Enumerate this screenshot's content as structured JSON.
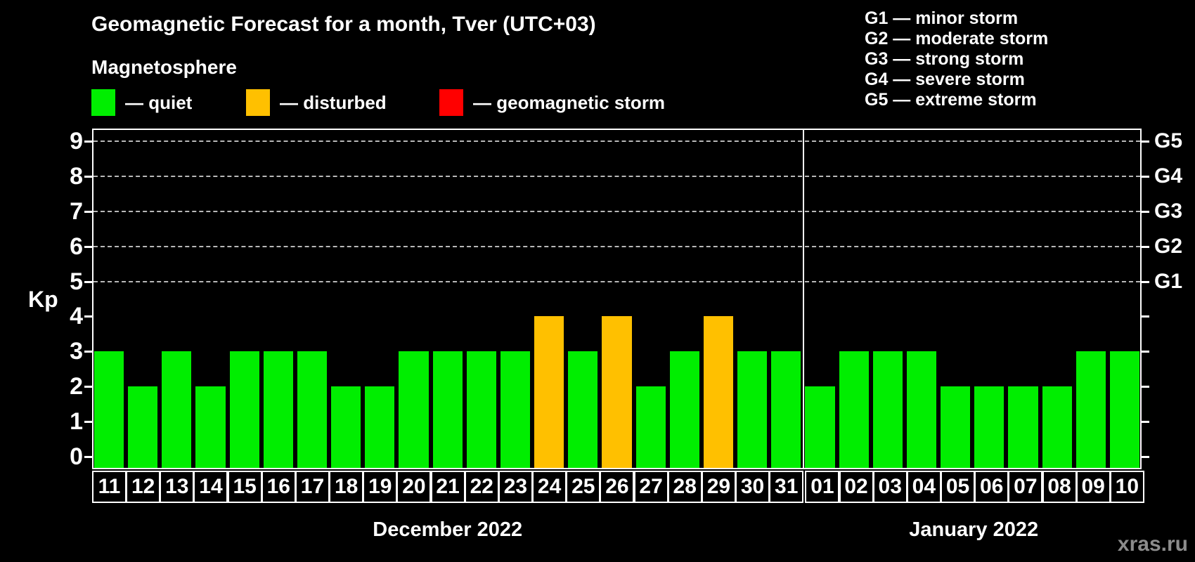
{
  "title": "Geomagnetic Forecast for a month, Tver (UTC+03)",
  "subtitle": "Magnetosphere",
  "legend": {
    "items": [
      {
        "status": "quiet",
        "label": "— quiet",
        "color": "#00ee00"
      },
      {
        "status": "disturbed",
        "label": "— disturbed",
        "color": "#ffc000"
      },
      {
        "status": "storm",
        "label": "— geomagnetic storm",
        "color": "#ff0000"
      }
    ]
  },
  "g_legend": [
    "G1 — minor storm",
    "G2 — moderate storm",
    "G3 — strong storm",
    "G4 — severe storm",
    "G5 — extreme storm"
  ],
  "watermark": "xras.ru",
  "chart_data": {
    "type": "bar",
    "title": "Geomagnetic Forecast for a month, Tver (UTC+03)",
    "ylabel": "Kp",
    "ylim": [
      0,
      9
    ],
    "yticks": [
      0,
      1,
      2,
      3,
      4,
      5,
      6,
      7,
      8,
      9
    ],
    "gridlines_at": [
      5,
      6,
      7,
      8,
      9
    ],
    "grid": "dashed",
    "right_axis": [
      {
        "label": "G1",
        "kp": 5
      },
      {
        "label": "G2",
        "kp": 6
      },
      {
        "label": "G3",
        "kp": 7
      },
      {
        "label": "G4",
        "kp": 8
      },
      {
        "label": "G5",
        "kp": 9
      }
    ],
    "months": [
      {
        "label": "December 2022",
        "days": 21
      },
      {
        "label": "January 2022",
        "days": 10
      }
    ],
    "categories": [
      "11",
      "12",
      "13",
      "14",
      "15",
      "16",
      "17",
      "18",
      "19",
      "20",
      "21",
      "22",
      "23",
      "24",
      "25",
      "26",
      "27",
      "28",
      "29",
      "30",
      "31",
      "01",
      "02",
      "03",
      "04",
      "05",
      "06",
      "07",
      "08",
      "09",
      "10"
    ],
    "values": [
      3,
      2,
      3,
      2,
      3,
      3,
      3,
      2,
      2,
      3,
      3,
      3,
      3,
      4,
      3,
      4,
      2,
      3,
      4,
      3,
      3,
      2,
      3,
      3,
      3,
      2,
      2,
      2,
      2,
      3,
      3
    ],
    "statuses": [
      "quiet",
      "quiet",
      "quiet",
      "quiet",
      "quiet",
      "quiet",
      "quiet",
      "quiet",
      "quiet",
      "quiet",
      "quiet",
      "quiet",
      "quiet",
      "disturbed",
      "quiet",
      "disturbed",
      "quiet",
      "quiet",
      "disturbed",
      "quiet",
      "quiet",
      "quiet",
      "quiet",
      "quiet",
      "quiet",
      "quiet",
      "quiet",
      "quiet",
      "quiet",
      "quiet",
      "quiet"
    ],
    "colors": {
      "quiet": "#00ee00",
      "disturbed": "#ffc000",
      "storm": "#ff0000"
    }
  }
}
